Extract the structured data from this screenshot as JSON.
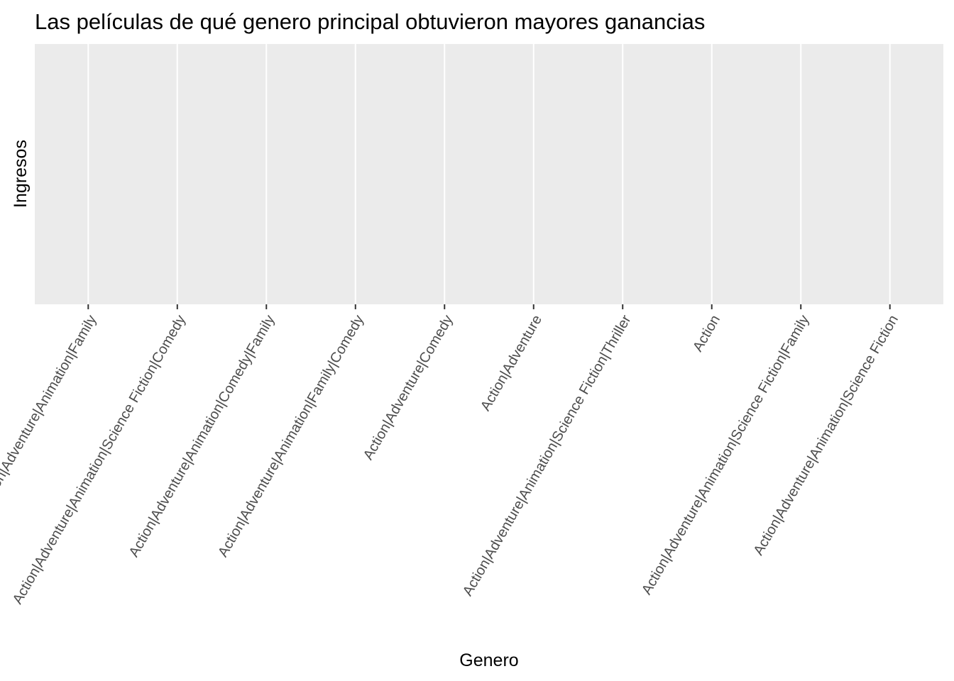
{
  "chart_data": {
    "type": "bar",
    "title": "Las películas de qué genero principal obtuvieron mayores ganancias",
    "x_label": "Genero",
    "y_label": "Ingresos",
    "categories": [
      "Action|Adventure|Animation|Family",
      "Action|Adventure|Animation|Science Fiction|Comedy",
      "Action|Adventure|Animation|Comedy|Family",
      "Action|Adventure|Animation|Family|Comedy",
      "Action|Adventure|Comedy",
      "Action|Adventure",
      "Action|Adventure|Animation|Science Fiction|Thriller",
      "Action",
      "Action|Adventure|Animation|Science Fiction|Family",
      "Action|Adventure|Animation|Science Fiction"
    ],
    "grid": true
  }
}
